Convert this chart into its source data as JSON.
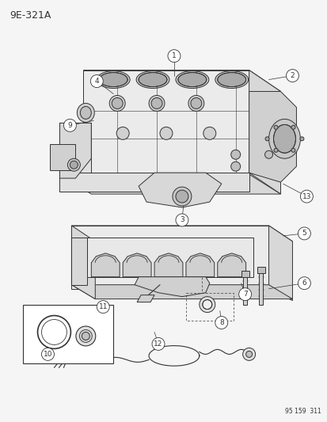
{
  "title": "9E-321A",
  "footer": "95 159  311",
  "bg_color": "#f5f5f5",
  "line_color": "#333333",
  "fig_width": 4.14,
  "fig_height": 5.33,
  "dpi": 100,
  "label_font_size": 6.5,
  "title_font_size": 9,
  "footer_font_size": 5.5,
  "gray_light": "#e8e8e8",
  "gray_mid": "#d0d0d0",
  "gray_dark": "#b8b8b8",
  "white": "#ffffff"
}
